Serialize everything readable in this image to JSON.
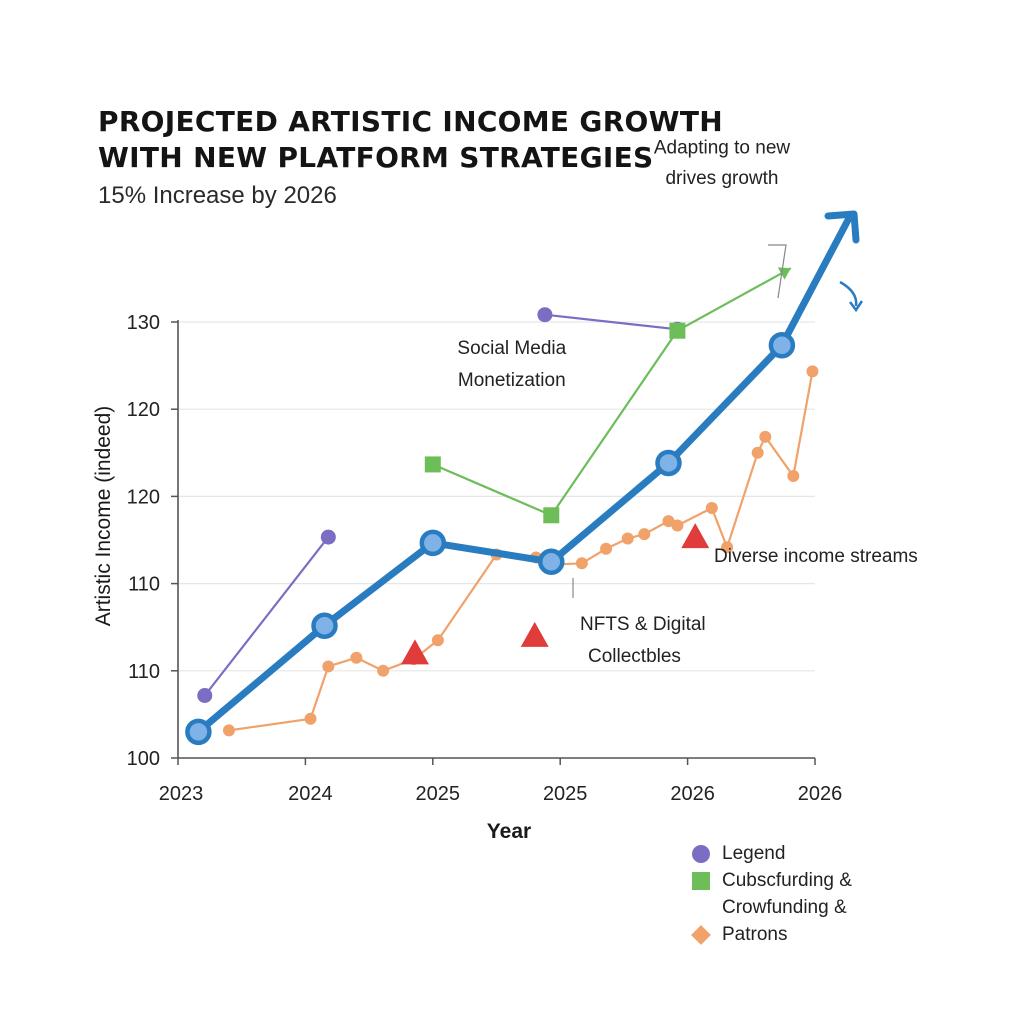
{
  "title_lines": [
    "PROJECTED ARTISTIC INCOME GROWTH",
    "WITH NEW PLATFORM STRATEGIES"
  ],
  "subtitle": "15% Increase by 2026",
  "colors": {
    "main": "#2a7cc0",
    "main_fill": "#7fb2e6",
    "social": "#7b6cc4",
    "subscription": "#6dbd58",
    "patrons": "#f0a26a",
    "nft": "#e03c3c",
    "grid": "#e6e6e6",
    "axis": "#555555"
  },
  "chart_data": {
    "type": "line",
    "xlabel": "Year",
    "ylabel": "Artistic Income (indeed)",
    "x_tick_labels": [
      "2023",
      "2024",
      "2025",
      "2025",
      "2026",
      "2026"
    ],
    "y_tick_labels": [
      "100",
      "110",
      "110",
      "120",
      "120",
      "130"
    ],
    "ylim": [
      100,
      130
    ],
    "grid": true,
    "legend_position": "bottom-right",
    "series": [
      {
        "name": "",
        "style": "thick-line-circles",
        "points": [
          [
            2023.16,
            101.8
          ],
          [
            2024.15,
            109.1
          ],
          [
            2025.0,
            114.8
          ],
          [
            2025.93,
            113.5
          ],
          [
            2026.85,
            120.3
          ],
          [
            2027.74,
            128.4
          ]
        ]
      },
      {
        "name": "Legend",
        "style": "line-circles",
        "points": [
          [
            2023.21,
            104.3
          ],
          [
            2024.18,
            115.2
          ],
          [
            2025.88,
            130.5
          ],
          [
            2026.92,
            129.5
          ]
        ]
      },
      {
        "name": "Cubscfurding & Crowfunding &",
        "style": "line-squares",
        "points": [
          [
            2025.0,
            120.2
          ],
          [
            2025.93,
            116.7
          ],
          [
            2026.92,
            129.4
          ],
          [
            2027.81,
            133.7
          ]
        ]
      },
      {
        "name": "Patrons",
        "style": "zigzag-line-dots",
        "points": [
          [
            2023.4,
            101.9
          ],
          [
            2024.04,
            102.7
          ],
          [
            2024.18,
            106.3
          ],
          [
            2024.4,
            106.9
          ],
          [
            2024.61,
            106.0
          ],
          [
            2024.85,
            106.8
          ],
          [
            2025.04,
            108.1
          ],
          [
            2025.5,
            114.0
          ],
          [
            2025.81,
            113.8
          ],
          [
            2025.93,
            113.3
          ],
          [
            2026.17,
            113.4
          ],
          [
            2026.36,
            114.4
          ],
          [
            2026.53,
            115.1
          ],
          [
            2026.66,
            115.4
          ],
          [
            2026.85,
            116.3
          ],
          [
            2026.92,
            116.0
          ],
          [
            2027.19,
            117.2
          ],
          [
            2027.31,
            114.5
          ],
          [
            2027.55,
            121.0
          ],
          [
            2027.61,
            122.1
          ],
          [
            2027.83,
            119.4
          ],
          [
            2027.98,
            126.6
          ]
        ]
      },
      {
        "name": "",
        "style": "triangles",
        "points": [
          [
            2024.86,
            107.2
          ],
          [
            2025.8,
            108.4
          ],
          [
            2027.06,
            115.2
          ]
        ]
      }
    ],
    "annotations": [
      {
        "text": "Social Media",
        "x": 2025.62,
        "y": 127.8
      },
      {
        "text": "Monetization",
        "x": 2025.62,
        "y": 125.6
      },
      {
        "text": "Adapting to new",
        "x": 2027.27,
        "y": 141.6
      },
      {
        "text": "drives growth",
        "x": 2027.27,
        "y": 139.5
      },
      {
        "text": "Diverse income streams",
        "x": 2027.31,
        "y": 113.5
      },
      {
        "text": "NFTS & Digital",
        "x": 2026.04,
        "y": 108.8
      },
      {
        "text": "Collectbles",
        "x": 2026.04,
        "y": 106.6
      }
    ]
  },
  "legend": [
    {
      "label": "Legend",
      "marker": "circle",
      "color": "#7b6cc4"
    },
    {
      "label": "Cubscfurding &",
      "marker": "square",
      "color": "#6dbd58"
    },
    {
      "label": "Crowfunding &",
      "marker": "none",
      "color": "#ffffff"
    },
    {
      "label": "Patrons",
      "marker": "diamond",
      "color": "#f0a26a"
    }
  ]
}
